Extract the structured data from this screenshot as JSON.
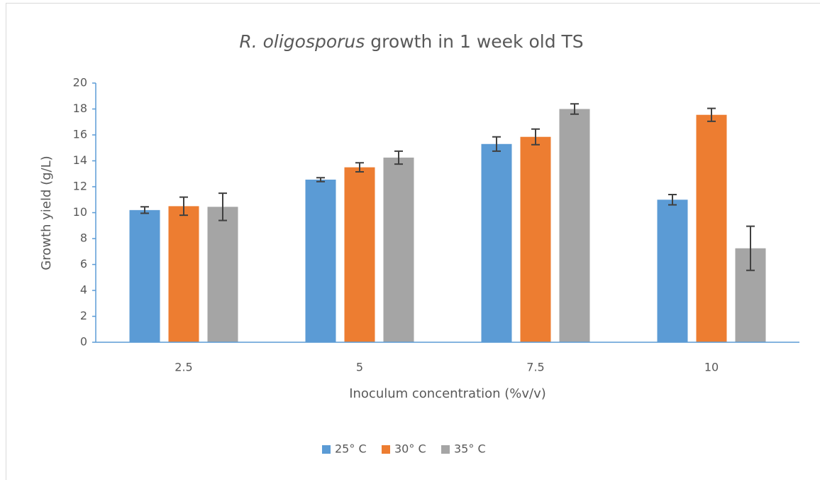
{
  "chart_data": {
    "type": "bar",
    "title": {
      "italic": "R. oligosporus",
      "rest": "growth in 1 week old TS"
    },
    "x_label": "Inoculum concentration (%v/v)",
    "y_label": "Growth yield (g/L)",
    "categories": [
      "2.5",
      "5",
      "7.5",
      "10"
    ],
    "series": [
      {
        "name": "25° C",
        "color": "#5b9bd5",
        "values": [
          10.2,
          12.55,
          15.3,
          11.0
        ],
        "errors": [
          0.25,
          0.15,
          0.55,
          0.4
        ]
      },
      {
        "name": "30° C",
        "color": "#ed7d31",
        "values": [
          10.5,
          13.5,
          15.85,
          17.55
        ],
        "errors": [
          0.7,
          0.35,
          0.6,
          0.5
        ]
      },
      {
        "name": "35° C",
        "color": "#a5a5a5",
        "values": [
          10.45,
          14.25,
          18.0,
          7.25
        ],
        "errors": [
          1.05,
          0.5,
          0.4,
          1.7
        ]
      }
    ],
    "ylim": [
      0,
      20
    ],
    "yticks": [
      0,
      2,
      4,
      6,
      8,
      10,
      12,
      14,
      16,
      18,
      20
    ],
    "legend": "bottom"
  }
}
